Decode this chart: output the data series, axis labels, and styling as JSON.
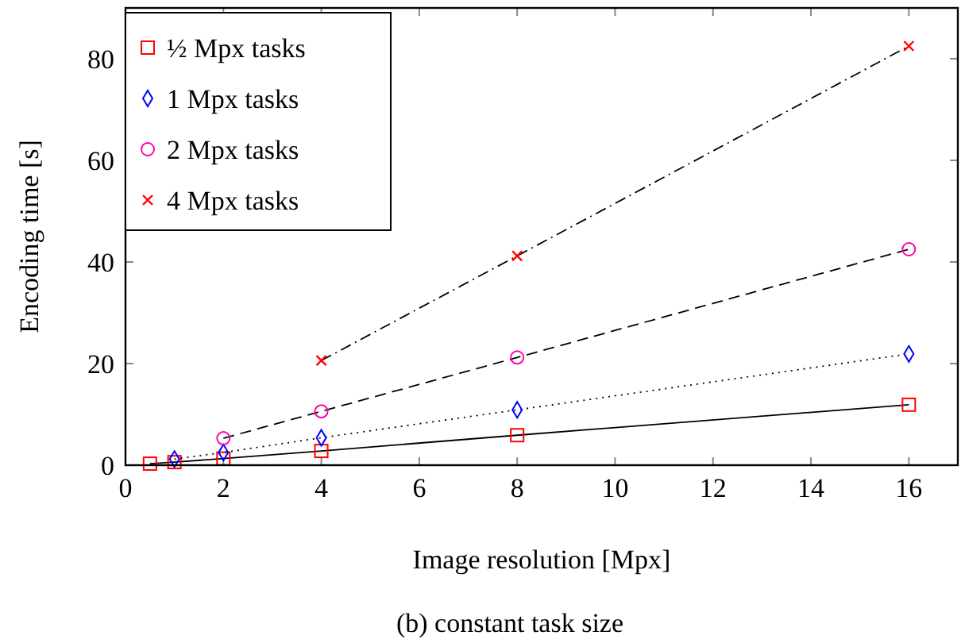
{
  "chart_data": {
    "type": "line",
    "xlabel": "Image resolution [Mpx]",
    "ylabel": "Encoding time [s]",
    "xlim": [
      0,
      17
    ],
    "xticks": [
      0,
      2,
      4,
      6,
      8,
      10,
      12,
      14,
      16
    ],
    "ylim": [
      0,
      90
    ],
    "yticks": [
      0,
      20,
      40,
      60,
      80
    ],
    "grid": false,
    "legend": "top left",
    "annotations": [
      "(b) constant task size"
    ],
    "series": [
      {
        "name": "½ Mpx tasks",
        "color": "#ff0000",
        "marker": "square",
        "line_style": "solid",
        "x": [
          0.5,
          1,
          2,
          4,
          8,
          16
        ],
        "values": [
          0.3,
          0.6,
          1.3,
          2.8,
          5.9,
          11.9
        ]
      },
      {
        "name": "1 Mpx tasks",
        "color": "#0000ff",
        "marker": "diamond",
        "line_style": "dotted",
        "x": [
          1,
          2,
          4,
          8,
          16
        ],
        "values": [
          1.2,
          2.5,
          5.4,
          10.9,
          21.9
        ]
      },
      {
        "name": "2 Mpx tasks",
        "color": "#ff00aa",
        "marker": "circle",
        "line_style": "dashed",
        "x": [
          2,
          4,
          8,
          16
        ],
        "values": [
          5.3,
          10.6,
          21.2,
          42.5
        ]
      },
      {
        "name": "4 Mpx tasks",
        "color": "#ff0000",
        "marker": "cross",
        "line_style": "dashdot",
        "x": [
          4,
          8,
          16
        ],
        "values": [
          20.6,
          41.2,
          82.5
        ]
      }
    ]
  }
}
